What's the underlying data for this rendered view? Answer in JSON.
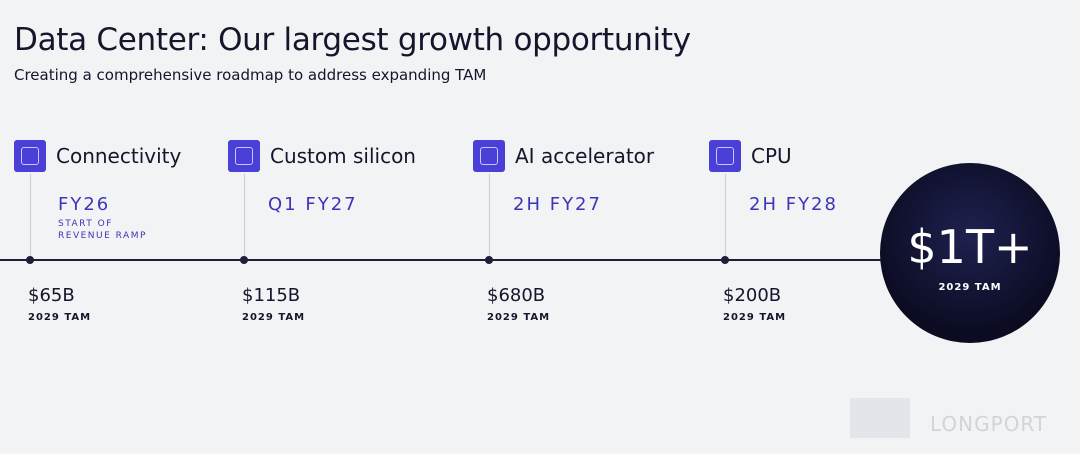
{
  "header": {
    "title": "Data Center: Our largest growth opportunity",
    "subtitle": "Creating a comprehensive roadmap to address expanding TAM"
  },
  "milestones": [
    {
      "label": "Connectivity",
      "timing": "FY26",
      "note": "START OF REVENUE RAMP",
      "tam": "$65B",
      "tam_label": "2029 TAM"
    },
    {
      "label": "Custom silicon",
      "timing": "Q1 FY27",
      "tam": "$115B",
      "tam_label": "2029 TAM"
    },
    {
      "label": "AI accelerator",
      "timing": "2H FY27",
      "tam": "$680B",
      "tam_label": "2029 TAM"
    },
    {
      "label": "CPU",
      "timing": "2H FY28",
      "tam": "$200B",
      "tam_label": "2029 TAM"
    }
  ],
  "total": {
    "value": "$1T+",
    "label": "2029 TAM"
  },
  "watermark": {
    "text": "LONGPORT"
  }
}
